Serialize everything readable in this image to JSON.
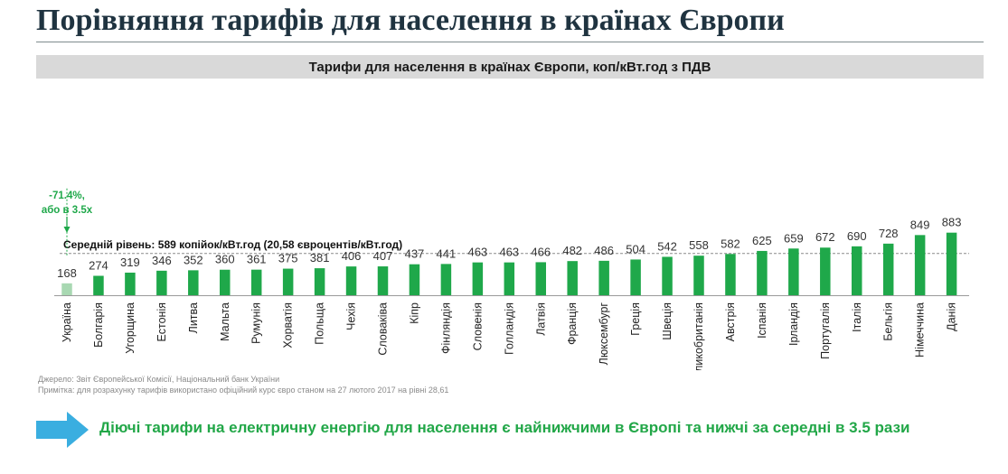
{
  "page": {
    "title": "Порівняння тарифів для населення в країнах Європи",
    "chart_heading": "Тарифи для населення в країнах Європи, коп/кВт.год з ПДВ",
    "source_line1": "Джерело: Звіт Європейської Комісії, Національний банк України",
    "source_line2": "Примітка: для розрахунку тарифів використано офіційний курс євро станом на 27 лютого 2017 на рівні 28,61",
    "conclusion": "Діючі тарифи на електричну енергію для населення є найнижчими в Європі та нижчі за середні в 3.5 рази"
  },
  "colors": {
    "bar": "#1fa84a",
    "highlight_bar": "#a8d8b2",
    "title": "#1f3340",
    "accent_text": "#1fa84a",
    "arrow": "#3aaee0"
  },
  "chart_data": {
    "type": "bar",
    "title": "Тарифи для населення в країнах Європи, коп/кВт.год з ПДВ",
    "categories": [
      "Україна",
      "Болгарія",
      "Угорщина",
      "Естонія",
      "Литва",
      "Мальта",
      "Румунія",
      "Хорватія",
      "Польща",
      "Чехія",
      "Словаківа",
      "Кіпр",
      "Фінляндія",
      "Словенія",
      "Голландія",
      "Латвія",
      "Франція",
      "Люксембург",
      "Греція",
      "Швеція",
      "Великобританія",
      "Австрія",
      "Іспанія",
      "Ірландія",
      "Португалія",
      "Італія",
      "Бельгія",
      "Німеччина",
      "Данія"
    ],
    "values": [
      168,
      274,
      319,
      346,
      352,
      360,
      361,
      375,
      381,
      406,
      407,
      437,
      441,
      463,
      463,
      466,
      482,
      486,
      504,
      542,
      558,
      582,
      625,
      659,
      672,
      690,
      728,
      849,
      883
    ],
    "highlight_index": 0,
    "ylim": [
      0,
      900
    ],
    "grid": false,
    "reference_line": {
      "value": 589,
      "label": "Середній рівень: 589 копійок/кВт.год (20,58 євроцентів/кВт.год)"
    },
    "annotation": {
      "line1": "-71.4%,",
      "line2": "або в 3.5х"
    }
  }
}
